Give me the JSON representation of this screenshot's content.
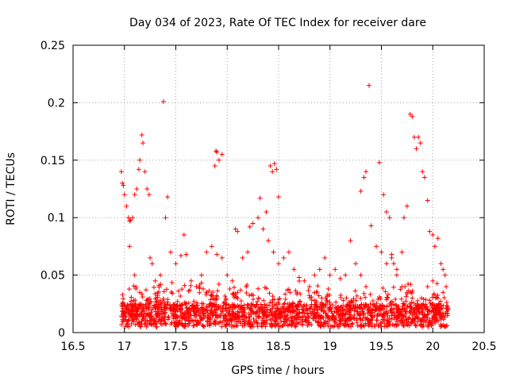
{
  "chart_data": {
    "type": "scatter",
    "title": "Day 034 of 2023, Rate Of TEC Index for receiver dare",
    "xlabel": "GPS time / hours",
    "ylabel": "ROTI / TECUs",
    "xlim": [
      16.5,
      20.5
    ],
    "ylim": [
      0,
      0.25
    ],
    "x_ticks": [
      "16.5",
      "17",
      "17.5",
      "18",
      "18.5",
      "19",
      "19.5",
      "20",
      "20.5"
    ],
    "y_ticks": [
      "0",
      "0.05",
      "0.1",
      "0.15",
      "0.2",
      "0.25"
    ],
    "grid": true,
    "marker": "plus",
    "color": "#ff0000",
    "x_range_data": [
      16.97,
      20.15
    ],
    "series": [
      {
        "points": [
          [
            16.97,
            0.14
          ],
          [
            16.98,
            0.13
          ],
          [
            16.99,
            0.128
          ],
          [
            17.0,
            0.12
          ],
          [
            17.02,
            0.11
          ],
          [
            17.04,
            0.1
          ],
          [
            17.05,
            0.097
          ],
          [
            17.06,
            0.098
          ],
          [
            17.08,
            0.1
          ],
          [
            17.1,
            0.12
          ],
          [
            17.12,
            0.125
          ],
          [
            17.14,
            0.142
          ],
          [
            17.15,
            0.15
          ],
          [
            17.17,
            0.172
          ],
          [
            17.18,
            0.165
          ],
          [
            17.2,
            0.14
          ],
          [
            17.22,
            0.125
          ],
          [
            17.24,
            0.12
          ],
          [
            17.38,
            0.201
          ],
          [
            17.4,
            0.1
          ],
          [
            17.42,
            0.118
          ],
          [
            17.89,
            0.158
          ],
          [
            17.9,
            0.157
          ],
          [
            17.88,
            0.145
          ],
          [
            17.92,
            0.15
          ],
          [
            17.95,
            0.155
          ],
          [
            18.42,
            0.145
          ],
          [
            18.44,
            0.14
          ],
          [
            18.46,
            0.147
          ],
          [
            18.48,
            0.142
          ],
          [
            18.5,
            0.118
          ],
          [
            19.35,
            0.14
          ],
          [
            19.33,
            0.135
          ],
          [
            19.3,
            0.123
          ],
          [
            19.38,
            0.215
          ],
          [
            19.4,
            0.093
          ],
          [
            19.48,
            0.148
          ],
          [
            19.52,
            0.12
          ],
          [
            19.55,
            0.105
          ],
          [
            19.58,
            0.1
          ],
          [
            19.6,
            0.065
          ],
          [
            19.62,
            0.06
          ],
          [
            19.65,
            0.05
          ],
          [
            19.7,
            0.07
          ],
          [
            19.72,
            0.1
          ],
          [
            19.75,
            0.11
          ],
          [
            19.78,
            0.19
          ],
          [
            19.8,
            0.188
          ],
          [
            19.82,
            0.17
          ],
          [
            19.84,
            0.16
          ],
          [
            19.86,
            0.17
          ],
          [
            19.88,
            0.165
          ],
          [
            19.9,
            0.14
          ],
          [
            19.92,
            0.135
          ],
          [
            19.95,
            0.115
          ],
          [
            19.97,
            0.088
          ],
          [
            20.0,
            0.085
          ],
          [
            20.02,
            0.075
          ],
          [
            20.05,
            0.082
          ],
          [
            20.08,
            0.06
          ],
          [
            20.1,
            0.055
          ],
          [
            20.12,
            0.05
          ],
          [
            17.05,
            0.075
          ],
          [
            17.1,
            0.05
          ],
          [
            17.15,
            0.035
          ],
          [
            17.25,
            0.065
          ],
          [
            17.27,
            0.06
          ],
          [
            17.3,
            0.045
          ],
          [
            17.35,
            0.05
          ],
          [
            17.45,
            0.07
          ],
          [
            17.5,
            0.06
          ],
          [
            17.55,
            0.067
          ],
          [
            17.58,
            0.085
          ],
          [
            17.6,
            0.068
          ],
          [
            17.65,
            0.045
          ],
          [
            17.7,
            0.04
          ],
          [
            17.75,
            0.05
          ],
          [
            17.8,
            0.07
          ],
          [
            17.85,
            0.075
          ],
          [
            17.9,
            0.068
          ],
          [
            17.95,
            0.065
          ],
          [
            18.0,
            0.05
          ],
          [
            18.05,
            0.045
          ],
          [
            18.08,
            0.09
          ],
          [
            18.1,
            0.088
          ],
          [
            18.15,
            0.065
          ],
          [
            18.2,
            0.07
          ],
          [
            18.22,
            0.092
          ],
          [
            18.25,
            0.095
          ],
          [
            18.3,
            0.1
          ],
          [
            18.32,
            0.117
          ],
          [
            18.35,
            0.09
          ],
          [
            18.38,
            0.105
          ],
          [
            18.4,
            0.08
          ],
          [
            18.45,
            0.07
          ],
          [
            18.5,
            0.06
          ],
          [
            18.55,
            0.065
          ],
          [
            18.6,
            0.07
          ],
          [
            18.65,
            0.055
          ],
          [
            18.7,
            0.048
          ],
          [
            18.75,
            0.045
          ],
          [
            18.8,
            0.04
          ],
          [
            18.85,
            0.05
          ],
          [
            18.9,
            0.055
          ],
          [
            18.95,
            0.065
          ],
          [
            19.0,
            0.05
          ],
          [
            19.05,
            0.055
          ],
          [
            19.1,
            0.047
          ],
          [
            19.15,
            0.05
          ],
          [
            19.2,
            0.08
          ],
          [
            19.25,
            0.06
          ],
          [
            19.3,
            0.05
          ],
          [
            19.35,
            0.04
          ],
          [
            19.45,
            0.075
          ],
          [
            19.5,
            0.07
          ],
          [
            19.55,
            0.06
          ],
          [
            19.6,
            0.068
          ],
          [
            19.65,
            0.055
          ],
          [
            19.7,
            0.04
          ],
          [
            19.75,
            0.035
          ],
          [
            19.8,
            0.03
          ],
          [
            19.85,
            0.02
          ],
          [
            19.9,
            0.005
          ],
          [
            19.95,
            0.04
          ],
          [
            20.0,
            0.045
          ],
          [
            20.05,
            0.03
          ],
          [
            20.1,
            0.035
          ],
          [
            20.13,
            0.04
          ],
          [
            20.15,
            0.02
          ]
        ]
      }
    ]
  }
}
